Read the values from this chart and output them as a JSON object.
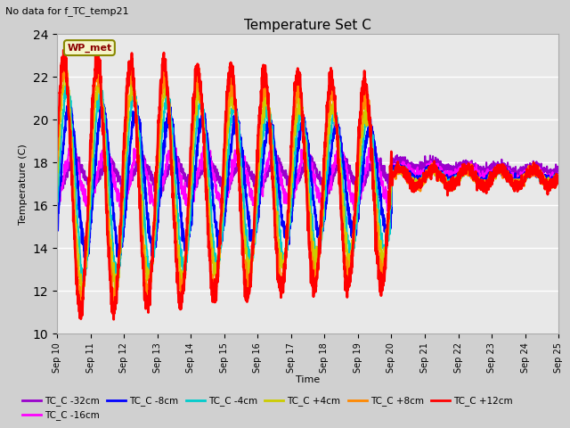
{
  "title": "Temperature Set C",
  "subtitle": "No data for f_TC_temp21",
  "xlabel": "Time",
  "ylabel": "Temperature (C)",
  "ylim": [
    10,
    24
  ],
  "yticks": [
    10,
    12,
    14,
    16,
    18,
    20,
    22,
    24
  ],
  "fig_facecolor": "#d8d8d8",
  "plot_facecolor": "#e8e8e8",
  "legend_box_label": "WP_met",
  "series": [
    {
      "label": "TC_C -32cm",
      "color": "#9900cc"
    },
    {
      "label": "TC_C -16cm",
      "color": "#ff00ff"
    },
    {
      "label": "TC_C -8cm",
      "color": "#0000ff"
    },
    {
      "label": "TC_C -4cm",
      "color": "#00cccc"
    },
    {
      "label": "TC_C +4cm",
      "color": "#cccc00"
    },
    {
      "label": "TC_C +8cm",
      "color": "#ff8800"
    },
    {
      "label": "TC_C +12cm",
      "color": "#ff0000"
    }
  ],
  "x_tick_labels": [
    "Sep 10",
    "Sep 11",
    "Sep 12",
    "Sep 13",
    "Sep 14",
    "Sep 15",
    "Sep 16",
    "Sep 17",
    "Sep 18",
    "Sep 19",
    "Sep 20",
    "Sep 21",
    "Sep 22",
    "Sep 23",
    "Sep 24",
    "Sep 25"
  ],
  "x_tick_positions": [
    0,
    1,
    2,
    3,
    4,
    5,
    6,
    7,
    8,
    9,
    10,
    11,
    12,
    13,
    14,
    15
  ]
}
